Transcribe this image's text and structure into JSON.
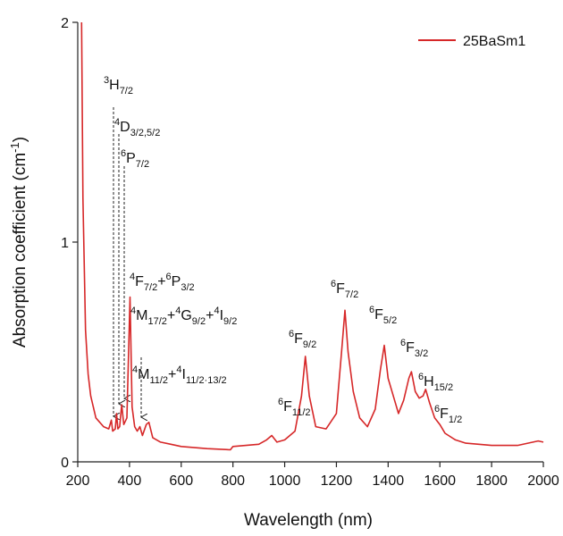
{
  "chart_data": {
    "type": "line",
    "xlabel": "Wavelength (nm)",
    "ylabel": [
      {
        "base": "Absorption coefficient (cm"
      },
      {
        "sup": "-1"
      },
      {
        "base": ")"
      }
    ],
    "xlim": [
      200,
      2000
    ],
    "xticks": [
      200,
      400,
      600,
      800,
      1000,
      1200,
      1400,
      1600,
      1800,
      2000
    ],
    "ylim": [
      0,
      2
    ],
    "yticks": [
      0,
      1,
      2
    ],
    "legend": "upper right",
    "series": [
      {
        "name": "25BaSm1",
        "color": "#d62728",
        "x": [
          215,
          220,
          230,
          240,
          250,
          270,
          300,
          320,
          330,
          335,
          345,
          350,
          355,
          362,
          370,
          378,
          390,
          402,
          410,
          420,
          430,
          440,
          450,
          465,
          475,
          490,
          520,
          560,
          600,
          700,
          790,
          800,
          900,
          930,
          950,
          970,
          1000,
          1040,
          1065,
          1080,
          1095,
          1120,
          1160,
          1200,
          1220,
          1233,
          1245,
          1265,
          1290,
          1320,
          1350,
          1370,
          1385,
          1400,
          1420,
          1440,
          1460,
          1480,
          1490,
          1505,
          1520,
          1535,
          1545,
          1560,
          1580,
          1600,
          1620,
          1660,
          1700,
          1800,
          1900,
          1980,
          2000
        ],
        "values": [
          2.0,
          1.2,
          0.6,
          0.4,
          0.3,
          0.2,
          0.16,
          0.15,
          0.19,
          0.14,
          0.15,
          0.22,
          0.15,
          0.16,
          0.26,
          0.17,
          0.2,
          0.75,
          0.25,
          0.16,
          0.14,
          0.16,
          0.12,
          0.17,
          0.18,
          0.11,
          0.09,
          0.08,
          0.07,
          0.06,
          0.055,
          0.07,
          0.08,
          0.1,
          0.12,
          0.09,
          0.1,
          0.14,
          0.3,
          0.48,
          0.3,
          0.16,
          0.15,
          0.22,
          0.5,
          0.69,
          0.5,
          0.32,
          0.2,
          0.16,
          0.24,
          0.42,
          0.53,
          0.38,
          0.3,
          0.22,
          0.28,
          0.38,
          0.41,
          0.32,
          0.29,
          0.3,
          0.33,
          0.27,
          0.2,
          0.17,
          0.13,
          0.1,
          0.085,
          0.075,
          0.075,
          0.095,
          0.09
        ]
      }
    ],
    "annotations": [
      [
        {
          "sup": "3",
          "base": "H",
          "sub": "7/2"
        }
      ],
      [
        {
          "sup": "4",
          "base": "D",
          "sub": "3/2,5/2"
        }
      ],
      [
        {
          "sup": "6",
          "base": "P",
          "sub": "7/2"
        }
      ],
      [
        {
          "sup": "4",
          "base": "F",
          "sub": "7/2"
        },
        {
          "base": "+"
        },
        {
          "sup": "6",
          "base": "P",
          "sub": "3/2"
        }
      ],
      [
        {
          "sup": "4",
          "base": "M",
          "sub": "17/2"
        },
        {
          "base": "+"
        },
        {
          "sup": "4",
          "base": "G",
          "sub": "9/2"
        },
        {
          "base": "+"
        },
        {
          "sup": "4",
          "base": "I",
          "sub": "9/2"
        }
      ],
      [
        {
          "sup": "4",
          "base": "M",
          "sub": "11/2"
        },
        {
          "base": "+"
        },
        {
          "sup": "4",
          "base": "I",
          "sub": "11/2·13/2"
        }
      ],
      [
        {
          "sup": "6",
          "base": "F",
          "sub": "11/2"
        }
      ],
      [
        {
          "sup": "6",
          "base": "F",
          "sub": "9/2"
        }
      ],
      [
        {
          "sup": "6",
          "base": "F",
          "sub": "7/2"
        }
      ],
      [
        {
          "sup": "6",
          "base": "F",
          "sub": "5/2"
        }
      ],
      [
        {
          "sup": "6",
          "base": "F",
          "sub": "3/2"
        }
      ],
      [
        {
          "sup": "6",
          "base": "H",
          "sub": "15/2"
        }
      ],
      [
        {
          "sup": "6",
          "base": "F",
          "sub": "1/2"
        }
      ]
    ]
  }
}
